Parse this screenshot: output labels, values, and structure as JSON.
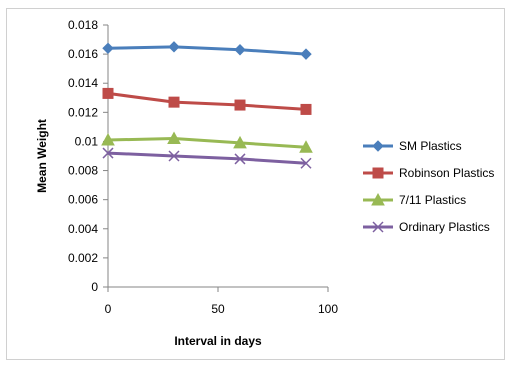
{
  "chart_data": {
    "type": "line",
    "title": "",
    "xlabel": "Interval in days",
    "ylabel": "Mean Weight",
    "xlim": [
      0,
      100
    ],
    "ylim": [
      0,
      0.018
    ],
    "x_ticks": [
      "0",
      "50",
      "100"
    ],
    "y_ticks": [
      "0",
      "0.002",
      "0.004",
      "0.006",
      "0.008",
      "0.01",
      "0.012",
      "0.014",
      "0.016",
      "0.018"
    ],
    "grid": false,
    "legend_position": "right",
    "x": [
      0,
      30,
      60,
      90
    ],
    "series": [
      {
        "name": "SM Plastics",
        "values": [
          0.0164,
          0.0165,
          0.0163,
          0.016
        ],
        "color": "#4a7ebb",
        "marker": "diamond"
      },
      {
        "name": "Robinson Plastics",
        "values": [
          0.0133,
          0.0127,
          0.0125,
          0.0122
        ],
        "color": "#be4b48",
        "marker": "square"
      },
      {
        "name": "7/11 Plastics",
        "values": [
          0.0101,
          0.0102,
          0.0099,
          0.0096
        ],
        "color": "#98b954",
        "marker": "triangle"
      },
      {
        "name": "Ordinary Plastics",
        "values": [
          0.0092,
          0.009,
          0.0088,
          0.0085
        ],
        "color": "#7d60a0",
        "marker": "x"
      }
    ]
  }
}
